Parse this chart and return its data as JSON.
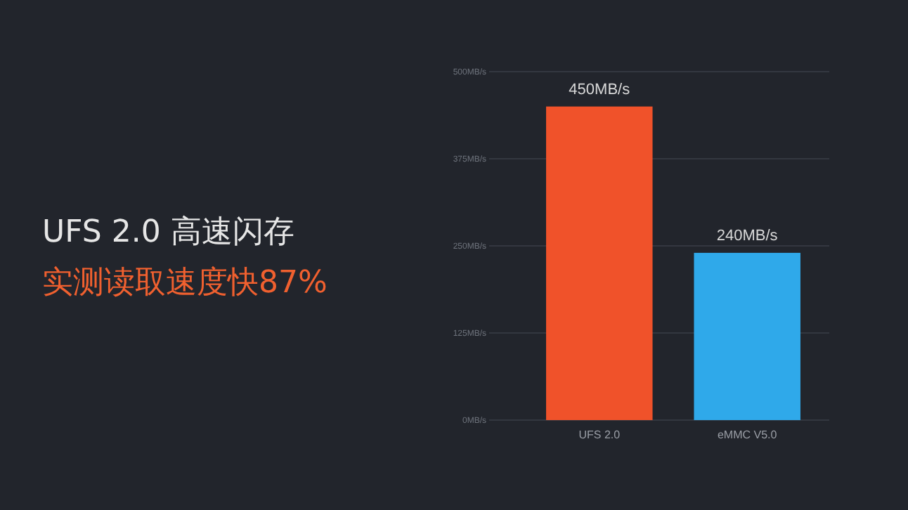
{
  "chart_data": {
    "type": "bar",
    "title": "UFS 2.0 高速闪存",
    "subtitle": "实测读取速度快87%",
    "categories": [
      "UFS 2.0",
      "eMMC V5.0"
    ],
    "values": [
      450,
      240
    ],
    "colors": [
      "#f0522a",
      "#2fa9ea"
    ],
    "value_labels": [
      "450MB/s",
      "240MB/s"
    ],
    "ylim": [
      0,
      500
    ],
    "yticks": [
      {
        "value": 0,
        "label": "0MB/s"
      },
      {
        "value": 125,
        "label": "125MB/s"
      },
      {
        "value": 250,
        "label": "250MB/s"
      },
      {
        "value": 375,
        "label": "375MB/s"
      },
      {
        "value": 500,
        "label": "500MB/s"
      }
    ],
    "grid": "y"
  }
}
